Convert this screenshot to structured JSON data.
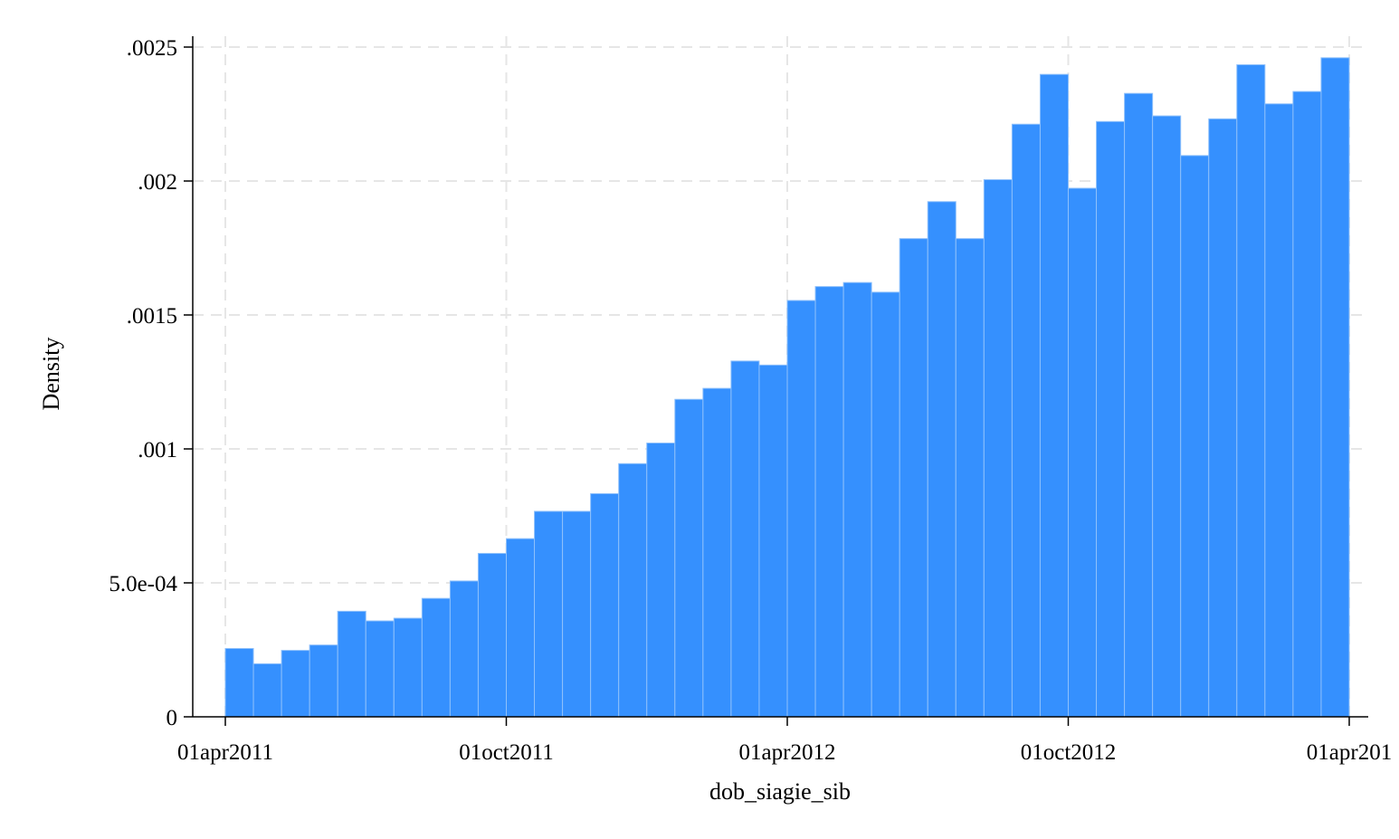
{
  "chart_data": {
    "type": "bar",
    "subtype": "histogram",
    "xlabel": "dob_siagie_sib",
    "ylabel": "Density",
    "x_ticks": [
      "01apr2011",
      "01oct2011",
      "01apr2012",
      "01oct2012",
      "01apr201"
    ],
    "y_ticks": [
      "0",
      "5.0e-04",
      ".001",
      ".0015",
      ".002",
      ".0025"
    ],
    "y_tick_values": [
      0,
      0.0005,
      0.001,
      0.0015,
      0.002,
      0.0025
    ],
    "ylim": [
      0,
      0.0025
    ],
    "xlim": [
      "01apr2011",
      "01apr2013"
    ],
    "grid": true,
    "bar_color": "#3590fe",
    "bar_edge_color": "#8ec0fb",
    "values": [
      0.000255,
      0.000198,
      0.000248,
      0.000268,
      0.000394,
      0.000358,
      0.000368,
      0.000442,
      0.000507,
      0.00061,
      0.000665,
      0.000767,
      0.000767,
      0.000833,
      0.000945,
      0.001022,
      0.001185,
      0.001226,
      0.001328,
      0.001313,
      0.001554,
      0.001606,
      0.001621,
      0.001585,
      0.001785,
      0.001923,
      0.001785,
      0.002005,
      0.002212,
      0.002398,
      0.001973,
      0.002222,
      0.002327,
      0.002243,
      0.002095,
      0.002232,
      0.002434,
      0.002288,
      0.002334,
      0.00246
    ]
  }
}
